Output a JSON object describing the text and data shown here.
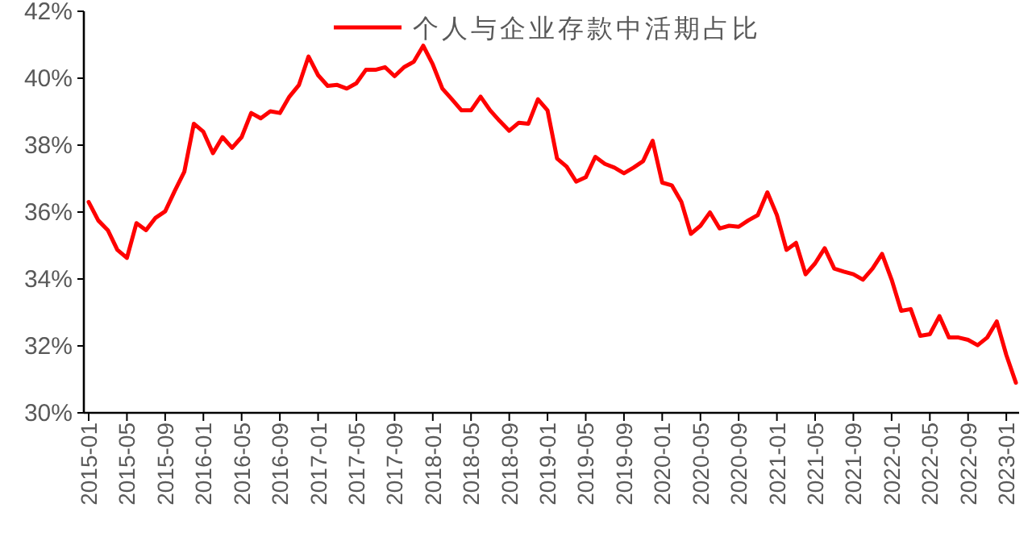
{
  "chart_data": {
    "type": "line",
    "categories": [
      "2015-01",
      null,
      null,
      null,
      "2015-05",
      null,
      null,
      null,
      "2015-09",
      null,
      null,
      null,
      "2016-01",
      null,
      null,
      null,
      "2016-05",
      null,
      null,
      null,
      "2016-09",
      null,
      null,
      null,
      "2017-01",
      null,
      null,
      null,
      "2017-05",
      null,
      null,
      null,
      "2017-09",
      null,
      null,
      null,
      "2018-01",
      null,
      null,
      null,
      "2018-05",
      null,
      null,
      null,
      "2018-09",
      null,
      null,
      null,
      "2019-01",
      null,
      null,
      null,
      "2019-05",
      null,
      null,
      null,
      "2019-09",
      null,
      null,
      null,
      "2020-01",
      null,
      null,
      null,
      "2020-05",
      null,
      null,
      null,
      "2020-09",
      null,
      null,
      null,
      "2021-01",
      null,
      null,
      null,
      "2021-05",
      null,
      null,
      null,
      "2021-09",
      null,
      null,
      null,
      "2022-01",
      null,
      null,
      null,
      "2022-05",
      null,
      null,
      null,
      "2022-09",
      null,
      null,
      null,
      "2023-01",
      null
    ],
    "series": [
      {
        "name": "个人与企业存款中活期占比",
        "color": "#ff0000",
        "values": [
          36.3,
          35.75,
          35.46,
          34.87,
          34.63,
          35.67,
          35.46,
          35.83,
          36.02,
          36.63,
          37.2,
          38.64,
          38.4,
          37.76,
          38.24,
          37.92,
          38.24,
          38.96,
          38.8,
          39.01,
          38.96,
          39.45,
          39.8,
          40.65,
          40.09,
          39.77,
          39.8,
          39.69,
          39.85,
          40.25,
          40.25,
          40.33,
          40.06,
          40.33,
          40.49,
          40.97,
          40.41,
          39.69,
          39.37,
          39.04,
          39.04,
          39.45,
          39.04,
          38.72,
          38.43,
          38.67,
          38.64,
          39.37,
          39.04,
          37.6,
          37.36,
          36.91,
          37.04,
          37.65,
          37.44,
          37.33,
          37.16,
          37.33,
          37.52,
          38.13,
          36.88,
          36.8,
          36.31,
          35.35,
          35.59,
          35.99,
          35.51,
          35.59,
          35.56,
          35.75,
          35.91,
          36.59,
          35.91,
          34.87,
          35.08,
          34.14,
          34.47,
          34.92,
          34.31,
          34.22,
          34.14,
          33.98,
          34.31,
          34.75,
          33.98,
          33.05,
          33.1,
          32.3,
          32.35,
          32.89,
          32.25,
          32.25,
          32.18,
          32.02,
          32.25,
          32.73,
          31.73,
          30.9
        ]
      }
    ],
    "ylim": [
      30,
      42
    ],
    "yticks": [
      {
        "value": 30,
        "label": "30%"
      },
      {
        "value": 32,
        "label": "32%"
      },
      {
        "value": 34,
        "label": "34%"
      },
      {
        "value": 36,
        "label": "36%"
      },
      {
        "value": 38,
        "label": "38%"
      },
      {
        "value": 40,
        "label": "40%"
      },
      {
        "value": 42,
        "label": "42%"
      }
    ],
    "legend": "top right",
    "grid": false,
    "marker": "none",
    "line_style": "solid"
  }
}
